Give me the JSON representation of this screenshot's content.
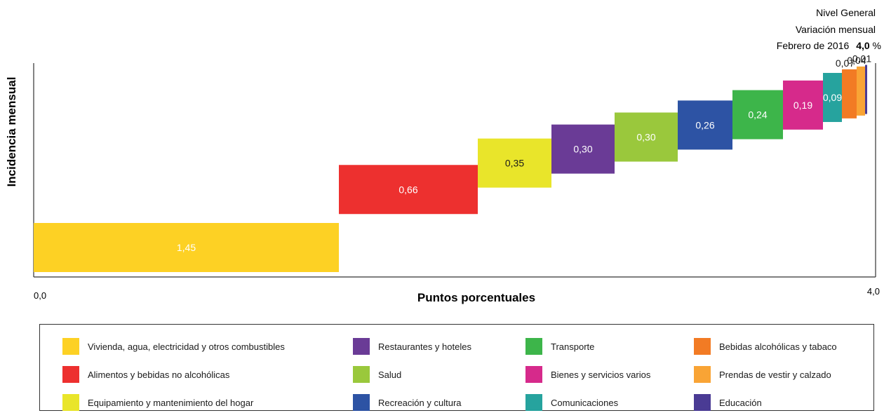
{
  "chart_data": {
    "type": "bar",
    "subtype": "waterfall-horizontal",
    "title_lines": [
      "Nivel General",
      "Variación mensual",
      "Febrero de 2016"
    ],
    "total_label": "4,0",
    "total_suffix": "%",
    "xlabel": "Puntos porcentuales",
    "ylabel": "Incidencia mensual",
    "xlim": [
      0,
      4.0
    ],
    "x_tick_labels": [
      "0,0",
      "4,0"
    ],
    "categories": [
      "Vivienda, agua, electricidad y otros combustibles",
      "Alimentos y bebidas no alcohólicas",
      "Equipamiento y mantenimiento del hogar",
      "Restaurantes y hoteles",
      "Salud",
      "Recreación y cultura",
      "Transporte",
      "Bienes y servicios varios",
      "Comunicaciones",
      "Bebidas alcohólicas y tabaco",
      "Prendas de vestir y calzado",
      "Educación"
    ],
    "values": [
      1.45,
      0.66,
      0.35,
      0.3,
      0.3,
      0.26,
      0.24,
      0.19,
      0.09,
      0.07,
      0.04,
      0.01
    ],
    "value_labels": [
      "1,45",
      "0,66",
      "0,35",
      "0,30",
      "0,30",
      "0,26",
      "0,24",
      "0,19",
      "0,09",
      "0,07",
      "0,04",
      "0,01"
    ],
    "colors": [
      "#fdd124",
      "#ed302f",
      "#e9e52a",
      "#6a3b96",
      "#9ac83c",
      "#2d53a4",
      "#3db54a",
      "#d62a8b",
      "#26a39e",
      "#f27b24",
      "#f9a435",
      "#4a3b94"
    ],
    "grid": false,
    "legend_position": "bottom"
  },
  "legend": [
    "Vivienda, agua, electricidad y otros combustibles",
    "Restaurantes y hoteles",
    "Transporte",
    "Bebidas alcohólicas y tabaco",
    "Alimentos y bebidas no alcohólicas",
    "Salud",
    "Bienes y servicios varios",
    "Prendas de vestir y calzado",
    "Equipamiento y mantenimiento del hogar",
    "Recreación y cultura",
    "Comunicaciones",
    "Educación"
  ],
  "legend_colors": [
    "#fdd124",
    "#6a3b96",
    "#3db54a",
    "#f27b24",
    "#ed302f",
    "#9ac83c",
    "#d62a8b",
    "#f9a435",
    "#e9e52a",
    "#2d53a4",
    "#26a39e",
    "#4a3b94"
  ]
}
